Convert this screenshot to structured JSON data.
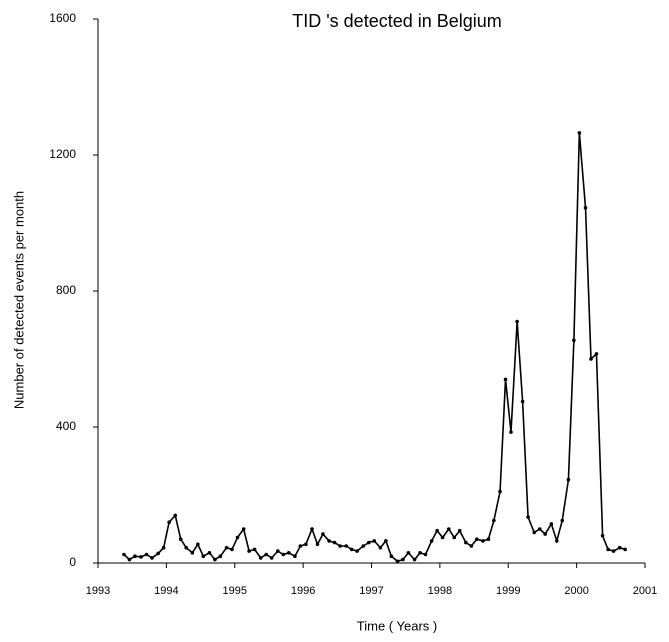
{
  "chart_data": {
    "type": "line",
    "title": "TID 's detected in Belgium",
    "x_label": "Time ( Years )",
    "y_label": "Number of detected events per month",
    "x": [
      1993.38,
      1993.46,
      1993.54,
      1993.63,
      1993.71,
      1993.79,
      1993.88,
      1993.96,
      1994.04,
      1994.13,
      1994.21,
      1994.29,
      1994.38,
      1994.46,
      1994.54,
      1994.63,
      1994.71,
      1994.79,
      1994.88,
      1994.96,
      1995.04,
      1995.13,
      1995.21,
      1995.29,
      1995.38,
      1995.46,
      1995.54,
      1995.63,
      1995.71,
      1995.79,
      1995.88,
      1995.96,
      1996.04,
      1996.13,
      1996.21,
      1996.29,
      1996.38,
      1996.46,
      1996.54,
      1996.63,
      1996.71,
      1996.79,
      1996.88,
      1996.96,
      1997.04,
      1997.13,
      1997.21,
      1997.29,
      1997.38,
      1997.46,
      1997.54,
      1997.63,
      1997.71,
      1997.79,
      1997.88,
      1997.96,
      1998.04,
      1998.13,
      1998.21,
      1998.29,
      1998.38,
      1998.46,
      1998.54,
      1998.63,
      1998.71,
      1998.79,
      1998.88,
      1998.96,
      1999.04,
      1999.13,
      1999.21,
      1999.29,
      1999.38,
      1999.46,
      1999.54,
      1999.63,
      1999.71,
      1999.79,
      1999.88,
      1999.96,
      2000.04,
      2000.13,
      2000.21,
      2000.29,
      2000.38,
      2000.46,
      2000.54,
      2000.63,
      2000.71
    ],
    "values": [
      25,
      10,
      20,
      18,
      25,
      15,
      28,
      45,
      120,
      140,
      70,
      45,
      30,
      55,
      20,
      30,
      10,
      20,
      45,
      40,
      75,
      100,
      35,
      40,
      15,
      25,
      15,
      35,
      25,
      30,
      20,
      50,
      55,
      100,
      55,
      85,
      65,
      60,
      50,
      50,
      40,
      35,
      50,
      60,
      65,
      45,
      65,
      20,
      5,
      10,
      30,
      10,
      30,
      25,
      65,
      95,
      75,
      100,
      75,
      95,
      60,
      50,
      70,
      65,
      70,
      125,
      210,
      540,
      385,
      710,
      475,
      135,
      90,
      100,
      85,
      115,
      65,
      125,
      245,
      655,
      1265,
      1045,
      600,
      615,
      80,
      40,
      35,
      45,
      40
    ],
    "color": "#000000",
    "xlim": [
      1993,
      2001
    ],
    "xticks": [
      1993,
      1994,
      1995,
      1996,
      1997,
      1998,
      1999,
      2000,
      2001
    ],
    "ylim": [
      0,
      1600
    ],
    "yticks": [
      0,
      400,
      800,
      1200,
      1600
    ],
    "grid": false
  }
}
